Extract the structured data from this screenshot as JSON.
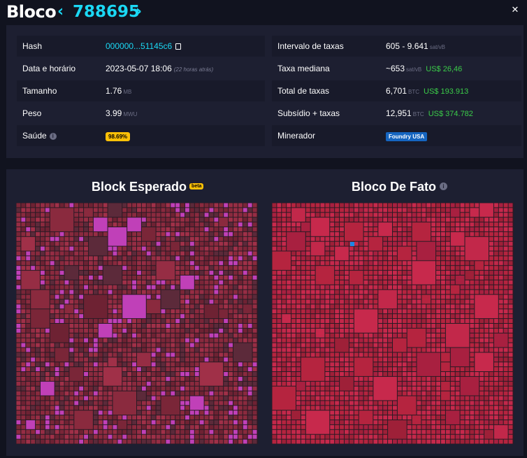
{
  "header": {
    "title": "Bloco",
    "block_height": "788695"
  },
  "details_left": [
    {
      "label": "Hash",
      "value": "000000...51145c6"
    },
    {
      "label": "Data e horário",
      "value": "2023-05-07 18:06",
      "note": "(22 horas atrás)"
    },
    {
      "label": "Tamanho",
      "value": "1.76",
      "unit": "MB"
    },
    {
      "label": "Peso",
      "value": "3.99",
      "unit": "MWU"
    },
    {
      "label": "Saúde",
      "value": "98.69%"
    }
  ],
  "details_right": [
    {
      "label": "Intervalo de taxas",
      "value": "605 - 9.641",
      "unit": "sat/vB"
    },
    {
      "label": "Taxa mediana",
      "value": "~653",
      "unit": "sat/vB",
      "usd": "US$ 26,46"
    },
    {
      "label": "Total de taxas",
      "value": "6,701",
      "unit": "BTC",
      "usd": "US$ 193.913"
    },
    {
      "label": "Subsídio + taxas",
      "value": "12,951",
      "unit": "BTC",
      "usd": "US$ 374.782"
    },
    {
      "label": "Minerador",
      "value": "Foundry USA"
    }
  ],
  "blocks": {
    "expected_title": "Block Esperado",
    "beta_label": "beta",
    "actual_title": "Bloco De Fato"
  },
  "colors": {
    "accent": "#1bd8f4",
    "usd_green": "#3bcc49",
    "health_badge": "#ffc107",
    "miner_badge": "#1565c0",
    "tx_red": "#b5243f",
    "tx_magenta": "#e040d0",
    "tx_blue": "#1e88e5"
  }
}
